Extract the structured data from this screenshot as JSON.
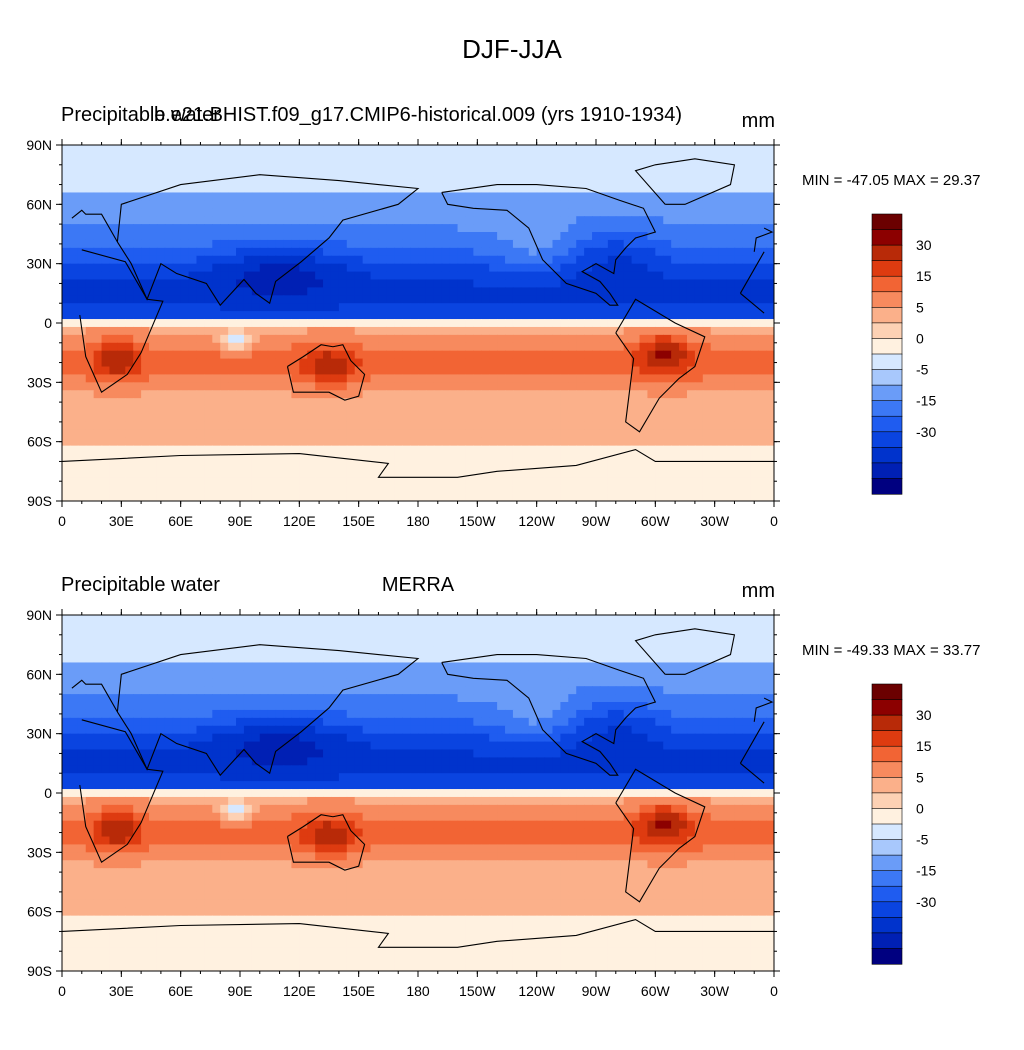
{
  "figure": {
    "title": "DJF-JJA"
  },
  "colors": {
    "levels": [
      -35,
      -30,
      -25,
      -20,
      -15,
      -10,
      -5,
      -2,
      0,
      2,
      5,
      10,
      15,
      20,
      25,
      30,
      35
    ],
    "fills": [
      "#000080",
      "#0020b4",
      "#0033cc",
      "#0a44e0",
      "#1f5cf0",
      "#3c78f5",
      "#6a9cf8",
      "#a8c8fc",
      "#d6e8ff",
      "#fff1e0",
      "#fdd1b4",
      "#fbb08a",
      "#f78a5e",
      "#f26434",
      "#de3b10",
      "#b82a08",
      "#8c0000",
      "#6b0000"
    ],
    "land_outline": "#000000"
  },
  "panels": [
    {
      "id": "top",
      "left_label": "Precipitable water",
      "center_label": "b.e21.BHIST.f09_g17.CMIP6-historical.009 (yrs 1910-1934)",
      "right_label": "mm",
      "min_max": "MIN = -47.05 MAX =  29.37"
    },
    {
      "id": "bottom",
      "left_label": "Precipitable water",
      "center_label": "MERRA",
      "right_label": "mm",
      "min_max": "MIN = -49.33 MAX =  33.77"
    }
  ],
  "axes": {
    "lat_labels": [
      "90N",
      "60N",
      "30N",
      "0",
      "30S",
      "60S",
      "90S"
    ],
    "lon_labels": [
      "0",
      "30E",
      "60E",
      "90E",
      "120E",
      "150E",
      "180",
      "150W",
      "120W",
      "90W",
      "60W",
      "30W",
      "0"
    ]
  },
  "colorbar": {
    "labels": [
      "30",
      "15",
      "5",
      "0",
      "-5",
      "-15",
      "-30"
    ]
  }
}
